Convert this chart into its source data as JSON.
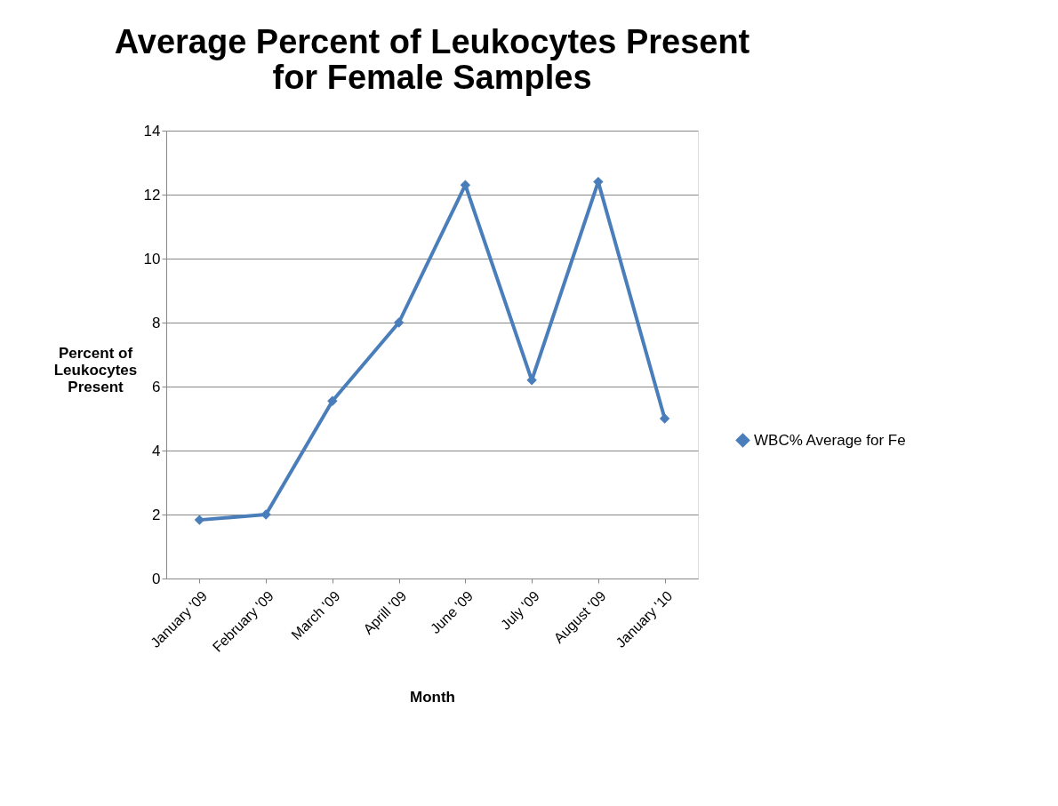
{
  "chart_data": {
    "type": "line",
    "title": "Average Percent of Leukocytes Present for Female Samples",
    "xlabel": "Month",
    "ylabel": "Percent of Leukocytes Present",
    "categories": [
      "January '09",
      "February '09",
      "March '09",
      "Aprill '09",
      "June '09",
      "July '09",
      "August '09",
      "January '10"
    ],
    "series": [
      {
        "name": "WBC% Average for Fe",
        "color": "#4a7ebb",
        "values": [
          1.83,
          2.0,
          5.55,
          8.0,
          12.3,
          6.2,
          12.4,
          5.0
        ]
      }
    ],
    "ylim": [
      0,
      14
    ],
    "yticks": [
      0,
      2,
      4,
      6,
      8,
      10,
      12,
      14
    ],
    "grid": "y",
    "legend": "right",
    "marker": "diamond",
    "line_style": "solid"
  }
}
